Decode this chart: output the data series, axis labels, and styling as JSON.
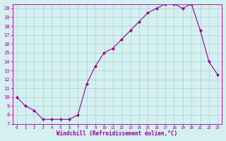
{
  "x": [
    0,
    1,
    2,
    3,
    4,
    5,
    6,
    7,
    8,
    9,
    10,
    11,
    12,
    13,
    14,
    15,
    16,
    17,
    18,
    19,
    20,
    21,
    22,
    23
  ],
  "y": [
    10,
    9,
    8.5,
    7.5,
    7.5,
    7.5,
    7.5,
    8.0,
    11.5,
    13.5,
    15.0,
    15.5,
    16.5,
    17.5,
    18.5,
    19.5,
    20.0,
    20.5,
    20.5,
    20.0,
    20.5,
    17.5,
    14.0,
    12.5
  ],
  "line_color": "#990099",
  "marker": "D",
  "marker_size": 2,
  "bg_color": "#d4f0f0",
  "grid_color": "#aacece",
  "xlabel": "Windchill (Refroidissement éolien,°C)",
  "xlabel_color": "#990099",
  "tick_color": "#990099",
  "ylim": [
    7,
    20.5
  ],
  "xlim": [
    -0.5,
    23.5
  ],
  "yticks": [
    7,
    8,
    9,
    10,
    11,
    12,
    13,
    14,
    15,
    16,
    17,
    18,
    19,
    20
  ],
  "xticks": [
    0,
    1,
    2,
    3,
    4,
    5,
    6,
    7,
    8,
    9,
    10,
    11,
    12,
    13,
    14,
    15,
    16,
    17,
    18,
    19,
    20,
    21,
    22,
    23
  ]
}
